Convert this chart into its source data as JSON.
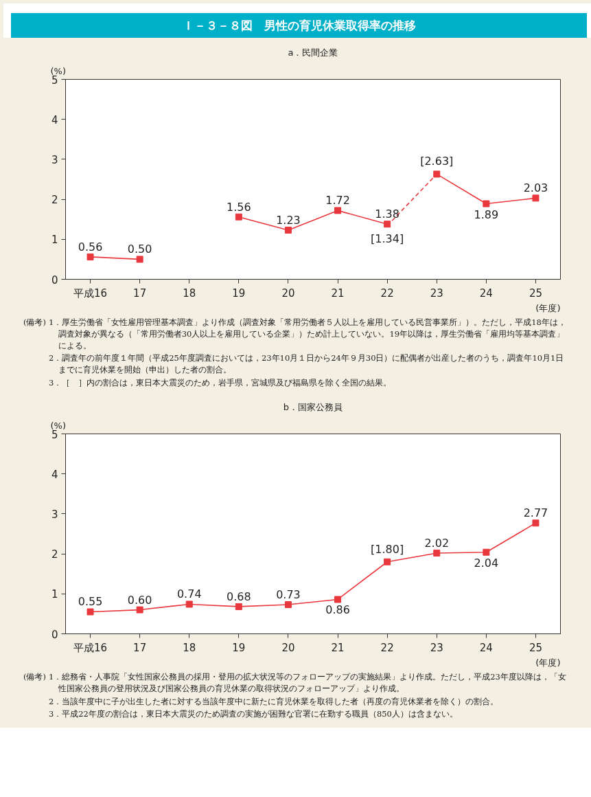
{
  "chart_data": [
    {
      "type": "line",
      "title": "Ｉ－３－８図　男性の育児休業取得率の推移",
      "subtitle": "a．民間企業",
      "ylabel": "(%)",
      "xlabel": "(年度)",
      "categories": [
        "平成16",
        "17",
        "18",
        "19",
        "20",
        "21",
        "22",
        "23",
        "24",
        "25"
      ],
      "series": [
        {
          "color": "#e8383d",
          "marker": "square",
          "line_style": "solid",
          "values": [
            0.56,
            0.5,
            null,
            1.56,
            1.23,
            1.72,
            1.38,
            null,
            null,
            null
          ],
          "value_labels": [
            "0.56",
            "0.50",
            null,
            "1.56",
            "1.23",
            "1.72",
            "1.38",
            null,
            null,
            null
          ]
        },
        {
          "color": "#e8383d",
          "line_style": "dashed",
          "values": [
            null,
            null,
            null,
            null,
            null,
            null,
            1.34,
            2.63,
            null,
            null
          ],
          "value_labels": [
            null,
            null,
            null,
            null,
            null,
            null,
            "[1.34]",
            null,
            null,
            null
          ]
        },
        {
          "color": "#e8383d",
          "marker": "square",
          "line_style": "solid",
          "values": [
            null,
            null,
            null,
            null,
            null,
            null,
            null,
            2.63,
            1.89,
            2.03
          ],
          "value_labels": [
            null,
            null,
            null,
            null,
            null,
            null,
            null,
            "[2.63]",
            "1.89",
            "2.03"
          ]
        }
      ],
      "ylim": [
        0,
        5
      ],
      "yticks": [
        0,
        1,
        2,
        3,
        4,
        5
      ],
      "grid": false,
      "annotations": [
        "(備考)",
        "1．厚生労働省「女性雇用管理基本調査」より作成（調査対象「常用労働者５人以上を雇用している民営事業所」）。ただし，平成18年は，調査対象が異なる（「常用労働者30人以上を雇用している企業」）ため計上していない。19年以降は，厚生労働省「雇用均等基本調査」による。",
        "2．調査年の前年度１年間（平成25年度調査においては，23年10月１日から24年９月30日）に配偶者が出産した者のうち，調査年10月1日までに育児休業を開始（申出）した者の割合。",
        "3．［　］内の割合は，東日本大震災のため，岩手県，宮城県及び福島県を除く全国の結果。"
      ]
    },
    {
      "type": "line",
      "title": "b．国家公務員",
      "ylabel": "(%)",
      "xlabel": "(年度)",
      "categories": [
        "平成16",
        "17",
        "18",
        "19",
        "20",
        "21",
        "22",
        "23",
        "24",
        "25"
      ],
      "series": [
        {
          "color": "#e8383d",
          "marker": "square",
          "line_style": "solid",
          "values": [
            0.55,
            0.6,
            0.74,
            0.68,
            0.73,
            0.86,
            1.8,
            2.02,
            2.04,
            2.77
          ],
          "value_labels": [
            "0.55",
            "0.60",
            "0.74",
            "0.68",
            "0.73",
            "0.86",
            "[1.80]",
            "2.02",
            "2.04",
            "2.77"
          ]
        }
      ],
      "ylim": [
        0,
        5
      ],
      "yticks": [
        0,
        1,
        2,
        3,
        4,
        5
      ],
      "grid": false,
      "annotations": [
        "(備考)",
        "1．総務省・人事院「女性国家公務員の採用・登用の拡大状況等のフォローアップの実施結果」より作成。ただし，平成23年度以降は，「女性国家公務員の登用状況及び国家公務員の育児休業の取得状況のフォローアップ」より作成。",
        "2．当該年度中に子が出生した者に対する当該年度中に新たに育児休業を取得した者（再度の育児休業者を除く）の割合。",
        "3．平成22年度の割合は，東日本大震災のため調査の実施が困難な官署に在勤する職員（850人）は含まない。"
      ]
    }
  ]
}
